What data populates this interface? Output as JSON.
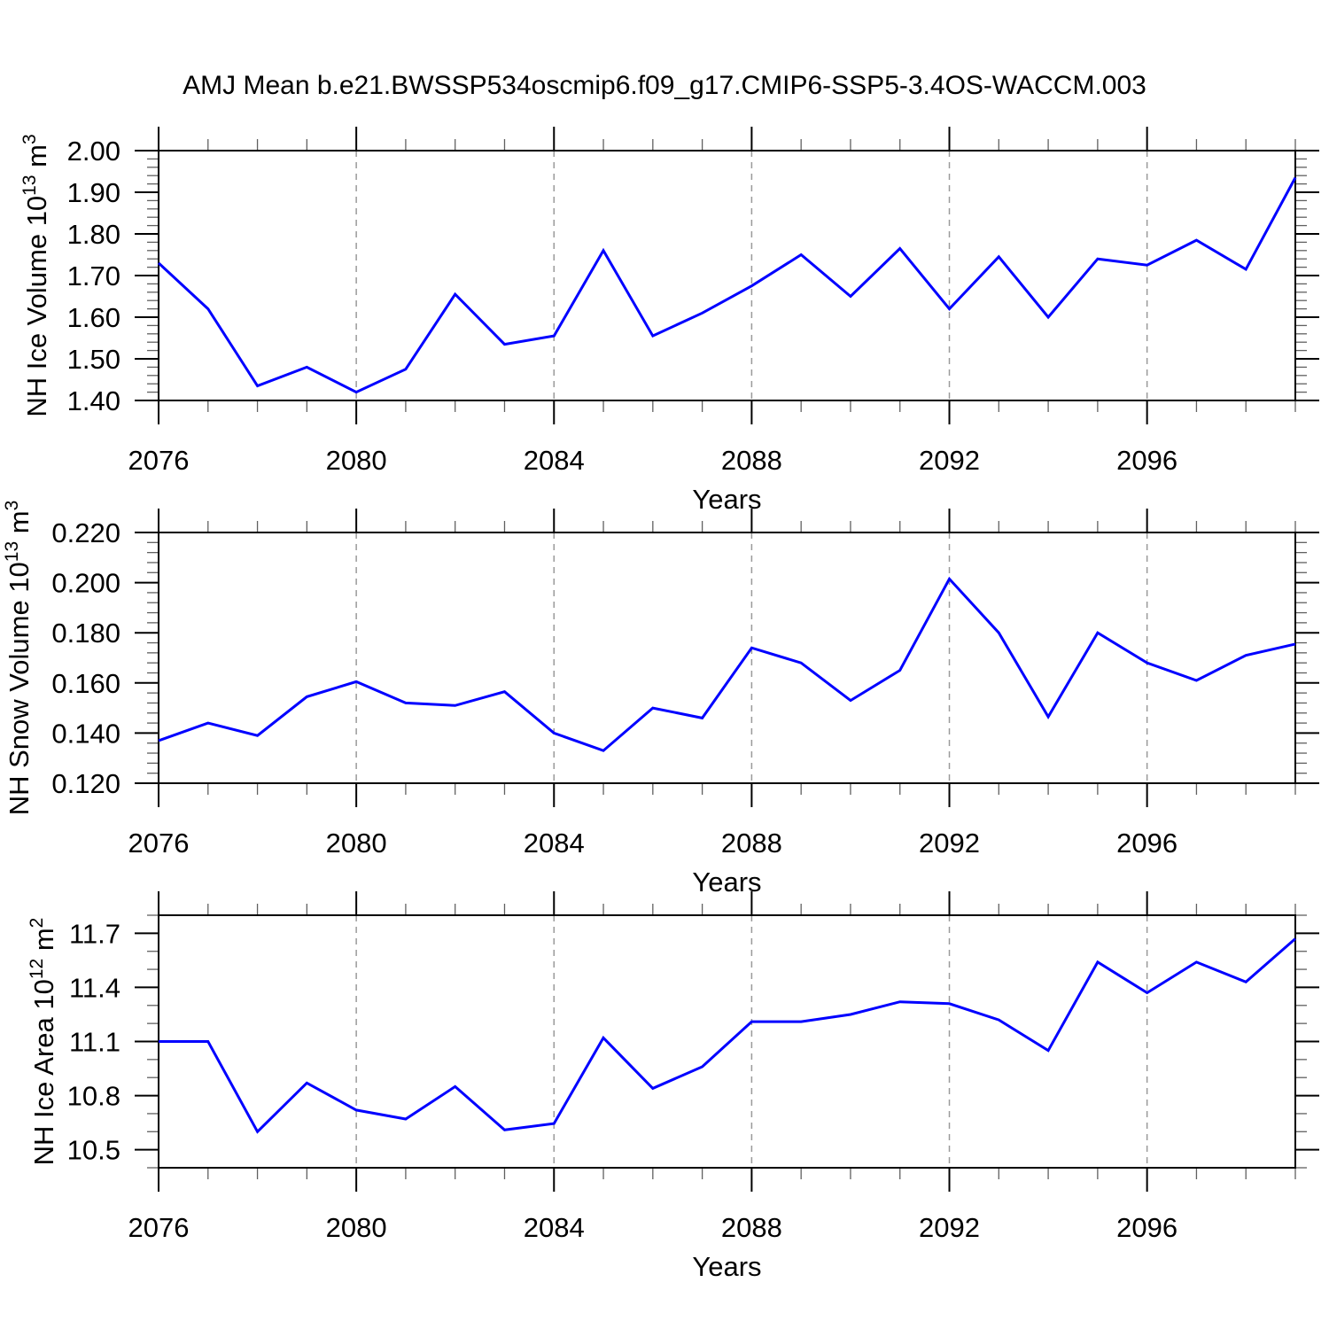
{
  "title": "AMJ Mean b.e21.BWSSP534oscmip6.f09_g17.CMIP6-SSP5-3.4OS-WACCM.003",
  "colors": {
    "line": "#0000ff",
    "frame": "#000000",
    "major_tick": "#000000",
    "minor_tick": "#606060",
    "gridline": "#9a9a9a",
    "text": "#000000",
    "background": "#ffffff"
  },
  "chart_data": [
    {
      "type": "line",
      "name": "ice-volume",
      "ylabel": "NH Ice Volume 10¹³ m³",
      "ylabel_segments": [
        {
          "t": "NH Ice Volume 10",
          "sup": false
        },
        {
          "t": "13",
          "sup": true
        },
        {
          "t": " m",
          "sup": false
        },
        {
          "t": "3",
          "sup": true
        }
      ],
      "xlabel": "Years",
      "x": [
        2076,
        2077,
        2078,
        2079,
        2080,
        2081,
        2082,
        2083,
        2084,
        2085,
        2086,
        2087,
        2088,
        2089,
        2090,
        2091,
        2092,
        2093,
        2094,
        2095,
        2096,
        2097,
        2098,
        2099
      ],
      "values": [
        1.73,
        1.62,
        1.435,
        1.48,
        1.42,
        1.475,
        1.655,
        1.535,
        1.555,
        1.76,
        1.555,
        1.61,
        1.675,
        1.75,
        1.65,
        1.765,
        1.62,
        1.745,
        1.6,
        1.74,
        1.725,
        1.785,
        1.715,
        1.935
      ],
      "xlim": [
        2076,
        2099
      ],
      "ylim": [
        1.4,
        2.0
      ],
      "yticks": {
        "first": 1.4,
        "last": 2.0,
        "major": 0.1,
        "minor": 0.02,
        "decimals": 2
      },
      "xticks": {
        "labeled": [
          2076,
          2080,
          2084,
          2088,
          2092,
          2096
        ],
        "minor_step": 1
      },
      "gridlines_x": [
        2080,
        2084,
        2088,
        2092,
        2096
      ],
      "legend": "none",
      "grid": "vertical-dashed"
    },
    {
      "type": "line",
      "name": "snow-volume",
      "ylabel": "NH Snow Volume 10¹³ m³",
      "ylabel_segments": [
        {
          "t": "NH Snow Volume 10",
          "sup": false
        },
        {
          "t": "13",
          "sup": true
        },
        {
          "t": " m",
          "sup": false
        },
        {
          "t": "3",
          "sup": true
        }
      ],
      "xlabel": "Years",
      "x": [
        2076,
        2077,
        2078,
        2079,
        2080,
        2081,
        2082,
        2083,
        2084,
        2085,
        2086,
        2087,
        2088,
        2089,
        2090,
        2091,
        2092,
        2093,
        2094,
        2095,
        2096,
        2097,
        2098,
        2099
      ],
      "values": [
        0.137,
        0.144,
        0.139,
        0.1545,
        0.1605,
        0.152,
        0.151,
        0.1565,
        0.14,
        0.133,
        0.15,
        0.146,
        0.174,
        0.168,
        0.153,
        0.165,
        0.2015,
        0.18,
        0.1465,
        0.18,
        0.168,
        0.161,
        0.171,
        0.1755
      ],
      "xlim": [
        2076,
        2099
      ],
      "ylim": [
        0.12,
        0.22
      ],
      "yticks": {
        "first": 0.12,
        "last": 0.22,
        "major": 0.02,
        "minor": 0.004,
        "decimals": 3
      },
      "xticks": {
        "labeled": [
          2076,
          2080,
          2084,
          2088,
          2092,
          2096
        ],
        "minor_step": 1
      },
      "gridlines_x": [
        2080,
        2084,
        2088,
        2092,
        2096
      ],
      "legend": "none",
      "grid": "vertical-dashed"
    },
    {
      "type": "line",
      "name": "ice-area",
      "ylabel": "NH Ice Area 10¹² m²",
      "ylabel_segments": [
        {
          "t": "NH Ice Area 10",
          "sup": false
        },
        {
          "t": "12",
          "sup": true
        },
        {
          "t": " m",
          "sup": false
        },
        {
          "t": "2",
          "sup": true
        }
      ],
      "xlabel": "Years",
      "x": [
        2076,
        2077,
        2078,
        2079,
        2080,
        2081,
        2082,
        2083,
        2084,
        2085,
        2086,
        2087,
        2088,
        2089,
        2090,
        2091,
        2092,
        2093,
        2094,
        2095,
        2096,
        2097,
        2098,
        2099
      ],
      "values": [
        11.1,
        11.1,
        10.6,
        10.87,
        10.72,
        10.67,
        10.85,
        10.61,
        10.645,
        11.12,
        10.84,
        10.96,
        11.21,
        11.21,
        11.25,
        11.32,
        11.31,
        11.22,
        11.05,
        11.54,
        11.37,
        11.54,
        11.43,
        11.67
      ],
      "xlim": [
        2076,
        2099
      ],
      "ylim": [
        10.4,
        11.8
      ],
      "yticks": {
        "first": 10.5,
        "last": 11.7,
        "major": 0.3,
        "minor": 0.1,
        "decimals": 1
      },
      "xticks": {
        "labeled": [
          2076,
          2080,
          2084,
          2088,
          2092,
          2096
        ],
        "minor_step": 1
      },
      "gridlines_x": [
        2080,
        2084,
        2088,
        2092,
        2096
      ],
      "legend": "none",
      "grid": "vertical-dashed"
    }
  ]
}
